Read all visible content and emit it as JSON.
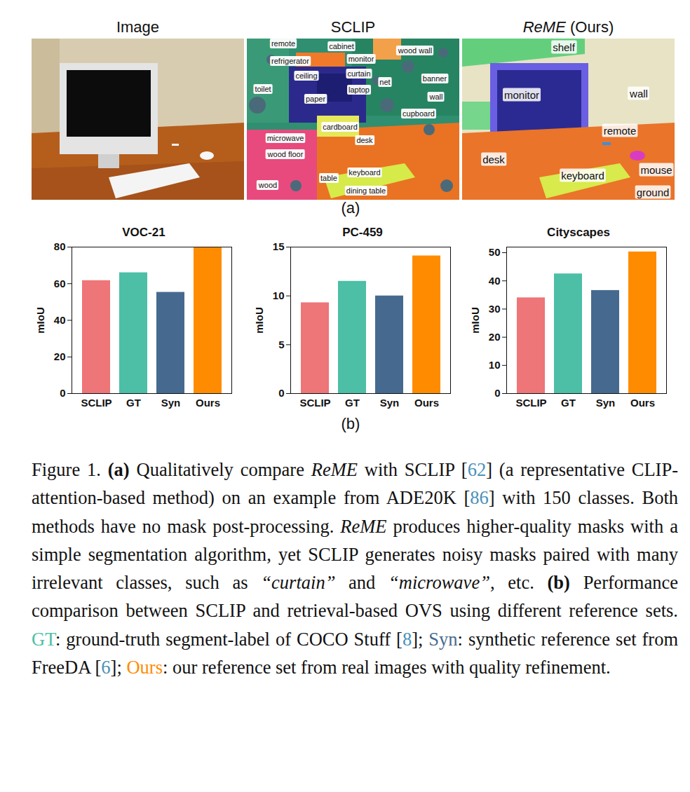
{
  "panel_a": {
    "label": "(a)",
    "panels": [
      {
        "title": [
          {
            "text": "Image"
          }
        ],
        "labels": []
      },
      {
        "title": [
          {
            "text": "SCLIP"
          }
        ],
        "labels": [
          "remote",
          "cabinet",
          "wood wall",
          "refrigerator",
          "monitor",
          "curtain",
          "net",
          "banner",
          "toilet",
          "ceiling",
          "laptop",
          "wall",
          "paper",
          "cupboard",
          "cardboard",
          "microwave",
          "desk",
          "wood floor",
          "table",
          "keyboard",
          "wood",
          "dining table"
        ]
      },
      {
        "title": [
          {
            "text": "ReME",
            "italic": true
          },
          {
            "text": " (Ours)"
          }
        ],
        "labels": [
          "shelf",
          "monitor",
          "wall",
          "remote",
          "desk",
          "keyboard",
          "mouse",
          "ground"
        ]
      }
    ]
  },
  "panel_b_label": "(b)",
  "chart_data": [
    {
      "type": "bar",
      "title": "VOC-21",
      "ylabel": "mIoU",
      "categories": [
        "SCLIP",
        "GT",
        "Syn",
        "Ours"
      ],
      "values": [
        61.7,
        66.0,
        55.3,
        79.6
      ],
      "colors": [
        "#ee7578",
        "#4cbfa6",
        "#466a8f",
        "#ff8c00"
      ],
      "ylim": [
        0,
        80
      ],
      "yticks": [
        0,
        20,
        40,
        60,
        80
      ]
    },
    {
      "type": "bar",
      "title": "PC-459",
      "ylabel": "mIoU",
      "categories": [
        "SCLIP",
        "GT",
        "Syn",
        "Ours"
      ],
      "values": [
        9.3,
        11.5,
        10.0,
        14.1
      ],
      "colors": [
        "#ee7578",
        "#4cbfa6",
        "#466a8f",
        "#ff8c00"
      ],
      "ylim": [
        0,
        15
      ],
      "yticks": [
        0,
        5,
        10,
        15
      ]
    },
    {
      "type": "bar",
      "title": "Cityscapes",
      "ylabel": "mIoU",
      "categories": [
        "SCLIP",
        "GT",
        "Syn",
        "Ours"
      ],
      "values": [
        34.0,
        42.5,
        36.6,
        50.3
      ],
      "colors": [
        "#ee7578",
        "#4cbfa6",
        "#466a8f",
        "#ff8c00"
      ],
      "ylim": [
        0,
        52
      ],
      "yticks": [
        0,
        10,
        20,
        30,
        40,
        50
      ]
    }
  ],
  "caption": [
    {
      "text": "Figure 1.  "
    },
    {
      "text": "(a)",
      "bold": true
    },
    {
      "text": " Qualitatively compare "
    },
    {
      "text": "ReME",
      "italic": true
    },
    {
      "text": " with SCLIP ["
    },
    {
      "text": "62",
      "color": "#4a90b8"
    },
    {
      "text": "] (a representative CLIP-attention-based method) on an example from ADE20K ["
    },
    {
      "text": "86",
      "color": "#4a90b8"
    },
    {
      "text": "] with 150 classes.  Both methods have no mask post-processing. "
    },
    {
      "text": "ReME",
      "italic": true
    },
    {
      "text": " produces higher-quality masks with a simple segmentation algorithm, yet SCLIP generates noisy masks paired with many irrelevant classes, such as "
    },
    {
      "text": "“curtain”",
      "italic": true
    },
    {
      "text": " and "
    },
    {
      "text": "“microwave”",
      "italic": true
    },
    {
      "text": ", etc.  "
    },
    {
      "text": "(b)",
      "bold": true
    },
    {
      "text": " Performance comparison between SCLIP and retrieval-based OVS using different reference sets. "
    },
    {
      "text": "GT",
      "color": "#4cbfa6"
    },
    {
      "text": ": ground-truth segment-label of COCO Stuff ["
    },
    {
      "text": "8",
      "color": "#4a90b8"
    },
    {
      "text": "]; "
    },
    {
      "text": "Syn",
      "color": "#466a8f"
    },
    {
      "text": ": synthetic reference set from FreeDA ["
    },
    {
      "text": "6",
      "color": "#4a90b8"
    },
    {
      "text": "]; "
    },
    {
      "text": "Ours",
      "color": "#ff8c00"
    },
    {
      "text": ":  our reference set from real images with quality refinement."
    }
  ]
}
